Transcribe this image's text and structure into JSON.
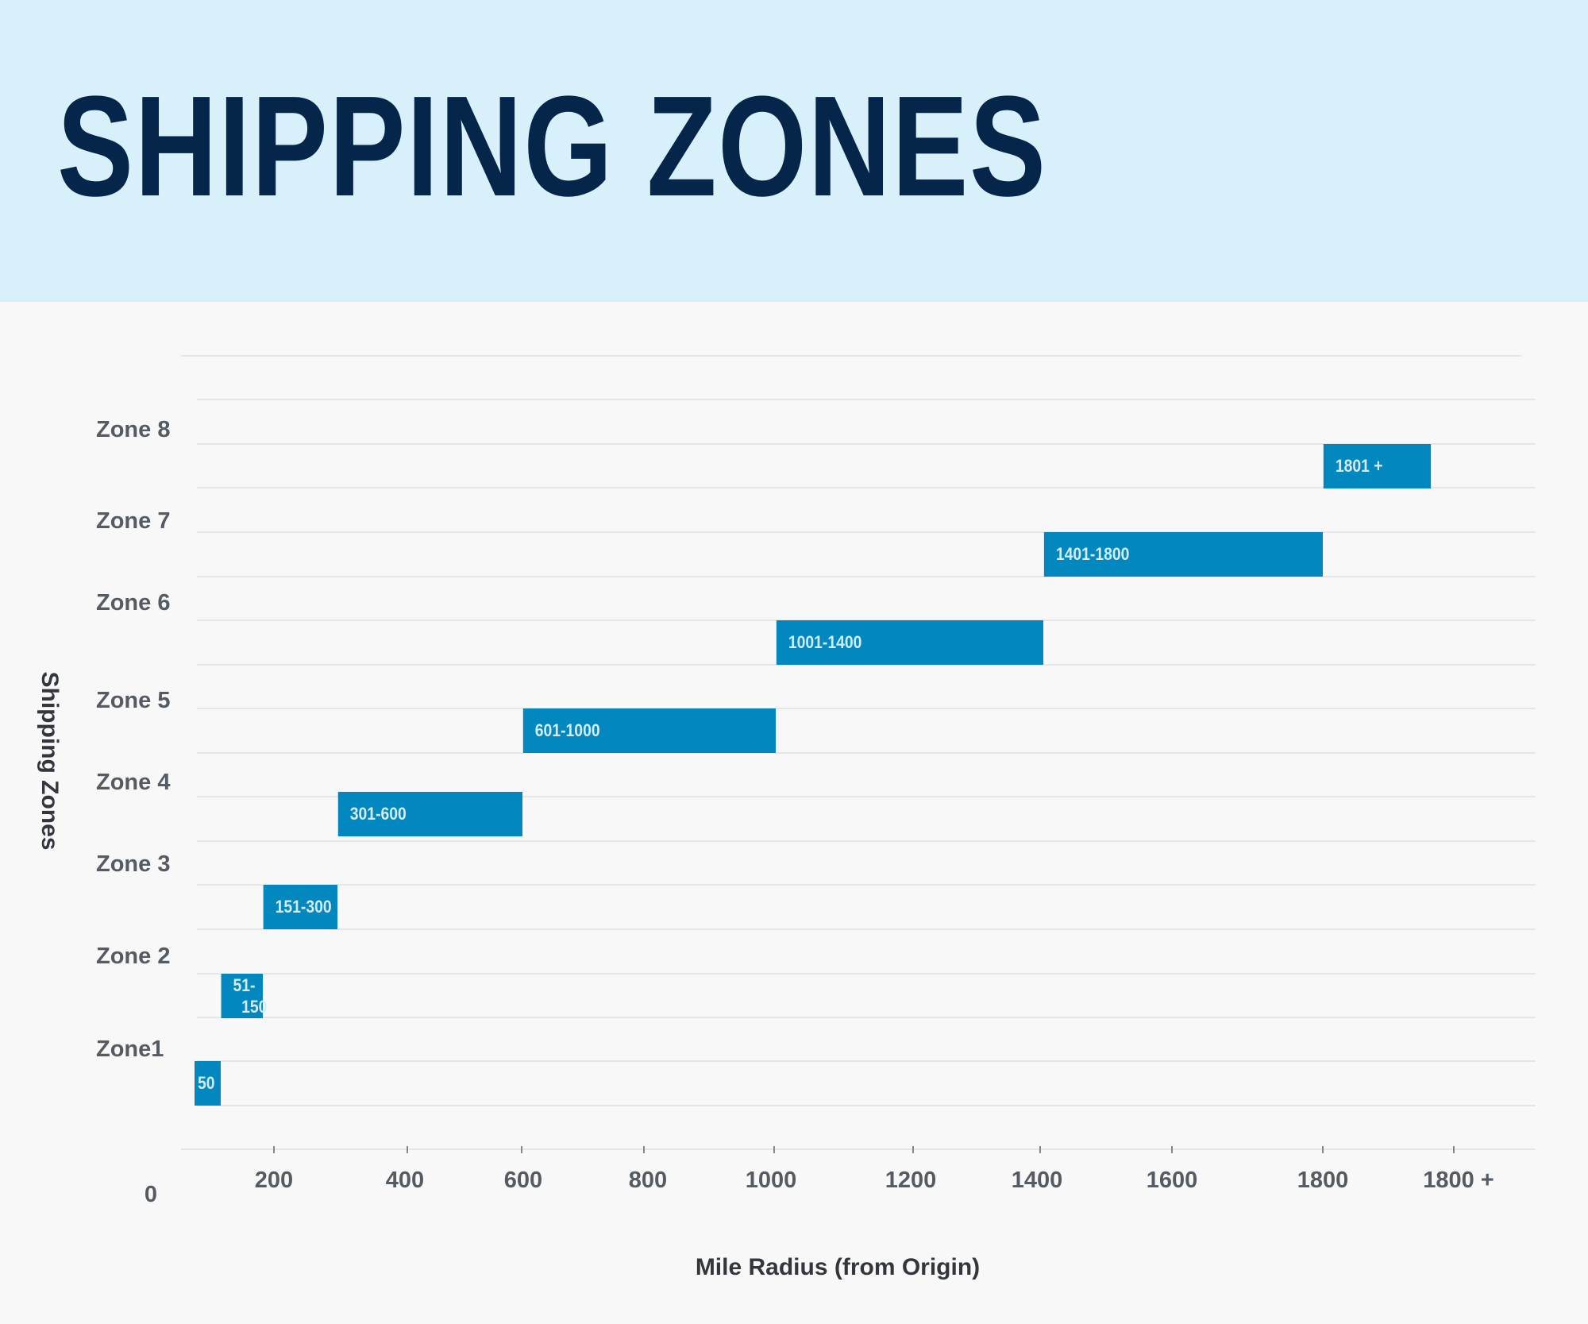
{
  "header": {
    "title": "SHIPPING ZONES"
  },
  "chart_data": {
    "type": "bar",
    "orientation": "horizontal-range",
    "title": "SHIPPING ZONES",
    "xlabel": "Mile Radius (from Origin)",
    "ylabel": "Shipping Zones",
    "x_origin_label": "0",
    "x_tick_labels": [
      "200",
      "400",
      "600",
      "800",
      "1000",
      "1200",
      "1400",
      "1600",
      "1800",
      "1800 +"
    ],
    "categories": [
      "Zone1",
      "Zone 2",
      "Zone 3",
      "Zone 4",
      "Zone 5",
      "Zone 6",
      "Zone 7",
      "Zone 8"
    ],
    "ranges": [
      {
        "start": 0,
        "end": 50,
        "label": "50"
      },
      {
        "start": 51,
        "end": 150,
        "label": "51-\n150"
      },
      {
        "start": 151,
        "end": 300,
        "label": "151-300"
      },
      {
        "start": 301,
        "end": 600,
        "label": "301-600"
      },
      {
        "start": 601,
        "end": 1000,
        "label": "601-1000"
      },
      {
        "start": 1001,
        "end": 1400,
        "label": "1001-1400"
      },
      {
        "start": 1401,
        "end": 1800,
        "label": "1401-1800"
      },
      {
        "start": 1801,
        "end": null,
        "label": "1801 +"
      }
    ],
    "grid": true,
    "colors": {
      "bar": "#0288be",
      "bar_label": "#d3ecf7",
      "header_bg": "#d8f0fa",
      "title": "#05264a"
    }
  }
}
